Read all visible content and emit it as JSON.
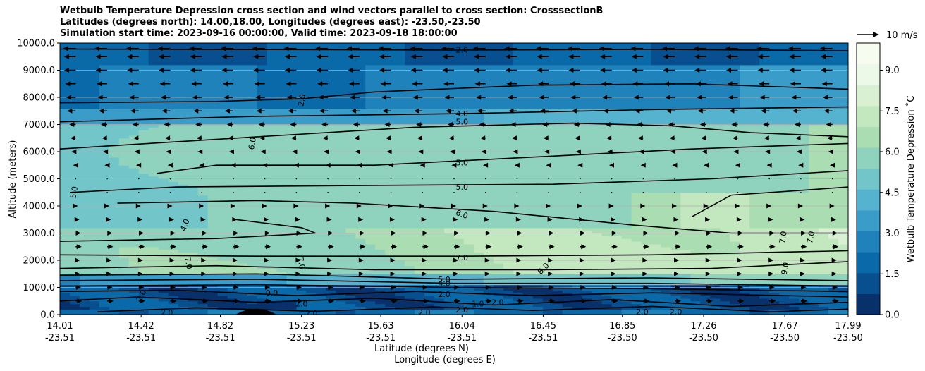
{
  "title": {
    "line1": "Wetbulb Temperature Depression cross section and wind vectors parallel to cross section: CrosssectionB",
    "line2": "Latitudes (degrees north): 14.00,18.00, Longitudes (degrees east): -23.50,-23.50",
    "line3": "Simulation start time: 2023-09-16 00:00:00, Valid time: 2023-09-18 18:00:00"
  },
  "chart_data": {
    "type": "heatmap",
    "variable": "Wetbulb Temperature Depression",
    "colorbar_label": "Wetbulb Temperature Depression ˚C",
    "colorbar_ticks": [
      "0.0",
      "1.5",
      "3.0",
      "4.5",
      "6.0",
      "7.5",
      "9.0"
    ],
    "colorbar_range": [
      0,
      10
    ],
    "colormap": [
      "#08306b",
      "#084f8f",
      "#0a6aa9",
      "#1f82ba",
      "#3a9cc8",
      "#56b3d0",
      "#72c6c9",
      "#8fd2bd",
      "#abddb3",
      "#c3e8bf",
      "#d9f0d3",
      "#ecf8e8",
      "#f7fcf0"
    ],
    "ylabel": "Altitude (meters)",
    "ylim": [
      0,
      10000
    ],
    "y_ticks": [
      "0.0",
      "1000.0",
      "2000.0",
      "3000.0",
      "4000.0",
      "5000.0",
      "6000.0",
      "7000.0",
      "8000.0",
      "9000.0",
      "10000.0"
    ],
    "xlabel_lat": "Latitude (degrees N)",
    "xlabel_lon": "Longitude (degrees E)",
    "x_ticks_lat": [
      "14.01",
      "14.42",
      "14.82",
      "15.23",
      "15.63",
      "16.04",
      "16.45",
      "16.85",
      "17.26",
      "17.67",
      "17.99"
    ],
    "x_ticks_lon": [
      "-23.51",
      "-23.51",
      "-23.51",
      "-23.51",
      "-23.51",
      "-23.51",
      "-23.51",
      "-23.50",
      "-23.50",
      "-23.50",
      "-23.50"
    ],
    "xlim": [
      14.01,
      17.99
    ],
    "grid": "horizontal",
    "contour_levels": [
      0,
      1,
      2,
      4,
      5,
      6,
      7,
      8,
      9
    ],
    "contour_labels": [
      {
        "text": "2.0",
        "lat": 16.04,
        "alt": 9750
      },
      {
        "text": "2.0",
        "lat": 15.23,
        "alt": 7900,
        "rot": -80
      },
      {
        "text": "4.0",
        "lat": 16.04,
        "alt": 7400
      },
      {
        "text": "5.0",
        "lat": 16.04,
        "alt": 7100
      },
      {
        "text": "6.0",
        "lat": 14.98,
        "alt": 6300,
        "rot": -80
      },
      {
        "text": "5.0",
        "lat": 14.08,
        "alt": 4500,
        "rot": -80
      },
      {
        "text": "5.0",
        "lat": 16.04,
        "alt": 5600
      },
      {
        "text": "5.0",
        "lat": 16.04,
        "alt": 4700
      },
      {
        "text": "6.0",
        "lat": 16.04,
        "alt": 3700,
        "rot": 20
      },
      {
        "text": "4.0",
        "lat": 14.64,
        "alt": 3300,
        "rot": -70
      },
      {
        "text": "7.0",
        "lat": 16.04,
        "alt": 2100
      },
      {
        "text": "7.0",
        "lat": 14.66,
        "alt": 1900,
        "rot": 80
      },
      {
        "text": "7.0",
        "lat": 15.23,
        "alt": 1900,
        "rot": 80
      },
      {
        "text": "8.0",
        "lat": 16.45,
        "alt": 1700,
        "rot": -45
      },
      {
        "text": "7.0",
        "lat": 17.66,
        "alt": 2850,
        "rot": -80
      },
      {
        "text": "7.0",
        "lat": 17.8,
        "alt": 2850,
        "rot": -80
      },
      {
        "text": "9.0",
        "lat": 17.67,
        "alt": 1700,
        "rot": -80
      },
      {
        "text": "0.0",
        "lat": 15.08,
        "alt": 800
      },
      {
        "text": "2.0",
        "lat": 14.42,
        "alt": 700,
        "rot": -60
      },
      {
        "text": "2.0",
        "lat": 14.55,
        "alt": 80
      },
      {
        "text": "2.0",
        "lat": 15.23,
        "alt": 400
      },
      {
        "text": "2.0",
        "lat": 15.28,
        "alt": 50
      },
      {
        "text": "2.0",
        "lat": 15.85,
        "alt": 80
      },
      {
        "text": "2.0",
        "lat": 16.04,
        "alt": 180
      },
      {
        "text": "1.0",
        "lat": 16.12,
        "alt": 400
      },
      {
        "text": "2.0",
        "lat": 16.22,
        "alt": 450
      },
      {
        "text": "2.0",
        "lat": 16.95,
        "alt": 100
      },
      {
        "text": "2.0",
        "lat": 17.12,
        "alt": 100
      },
      {
        "text": "5.0",
        "lat": 15.95,
        "alt": 1300
      },
      {
        "text": "4.0",
        "lat": 15.95,
        "alt": 1150
      },
      {
        "text": "2.0",
        "lat": 15.95,
        "alt": 750
      }
    ],
    "quiver_key": {
      "label": "10 m/s",
      "speed": 10
    },
    "wind_profile": [
      {
        "alt": 9800,
        "u": -6.0
      },
      {
        "alt": 9500,
        "u": -5.5
      },
      {
        "alt": 9000,
        "u": -5.5
      },
      {
        "alt": 8500,
        "u": -5.0
      },
      {
        "alt": 8000,
        "u": -4.5
      },
      {
        "alt": 7500,
        "u": -4.0
      },
      {
        "alt": 7000,
        "u": -3.0
      },
      {
        "alt": 6500,
        "u": -2.5
      },
      {
        "alt": 6000,
        "u": -2.0
      },
      {
        "alt": 5500,
        "u": -1.2
      },
      {
        "alt": 5000,
        "u": -0.3
      },
      {
        "alt": 4500,
        "u": 0.2
      },
      {
        "alt": 4000,
        "u": 1.0
      },
      {
        "alt": 3500,
        "u": 1.8
      },
      {
        "alt": 3000,
        "u": 2.4
      },
      {
        "alt": 2500,
        "u": 2.8
      },
      {
        "alt": 2000,
        "u": 2.0
      },
      {
        "alt": 1500,
        "u": 2.0
      },
      {
        "alt": 1000,
        "u": 2.5
      },
      {
        "alt": 500,
        "u": 3.0
      }
    ]
  }
}
